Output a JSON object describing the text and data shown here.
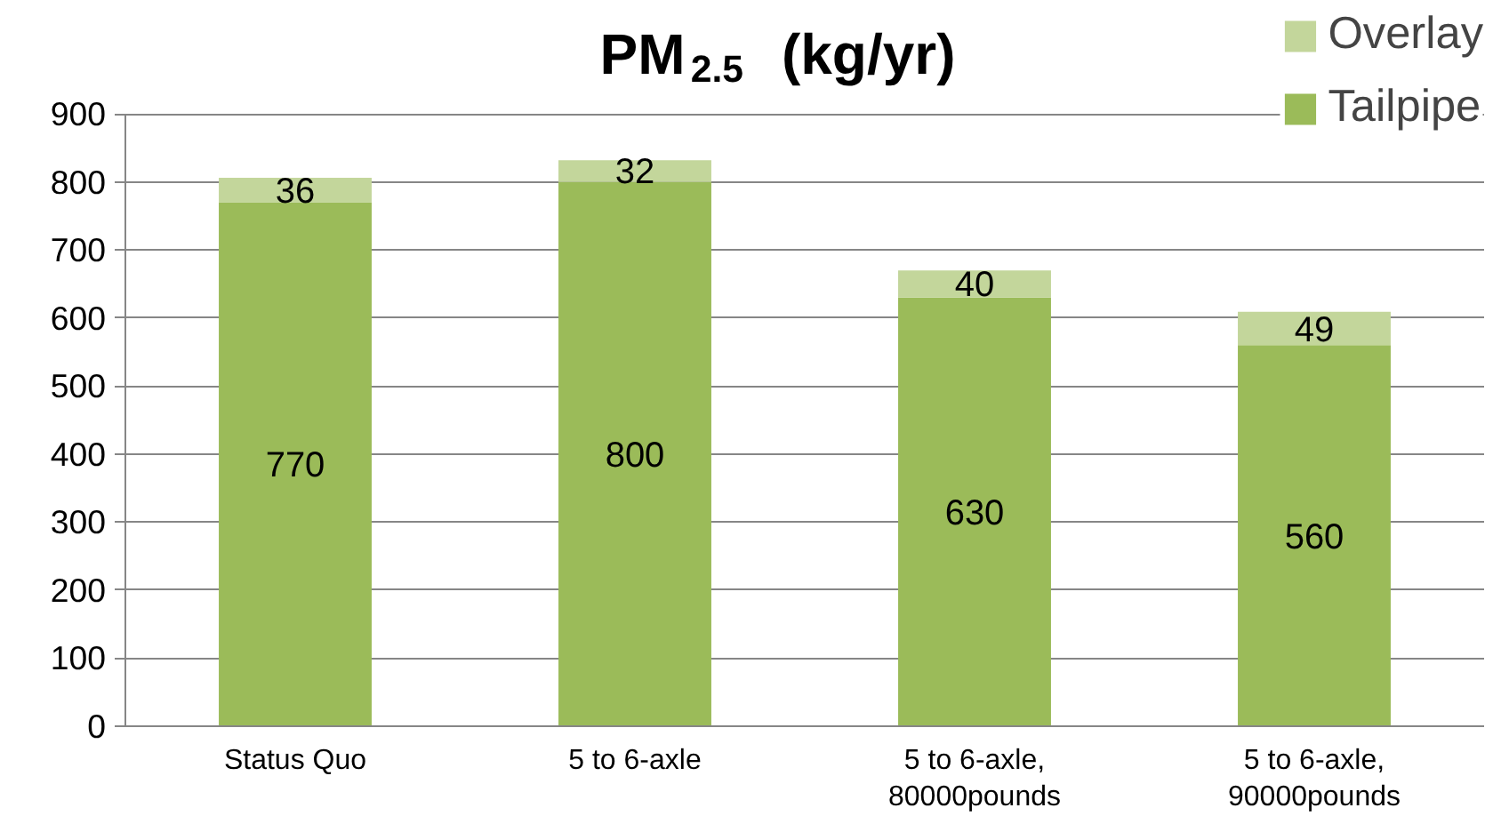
{
  "chart_data": {
    "type": "bar",
    "title": "PM$_{2.5}$ (kg/yr)",
    "categories": [
      "Status Quo",
      "5 to 6-axle",
      "5 to 6-axle,\n80000pounds",
      "5 to 6-axle,\n90000pounds"
    ],
    "series": [
      {
        "name": "Tailpipe",
        "color": "#9bbb59",
        "values": [
          770,
          800,
          630,
          560
        ]
      },
      {
        "name": "Overlay",
        "color": "#c3d69b",
        "values": [
          36,
          32,
          40,
          49
        ]
      }
    ],
    "stacked": true,
    "data_labels": true,
    "ylim": [
      0,
      900
    ],
    "yticks": [
      0,
      100,
      200,
      300,
      400,
      500,
      600,
      700,
      800,
      900
    ],
    "grid": "y",
    "legend": "top right"
  }
}
